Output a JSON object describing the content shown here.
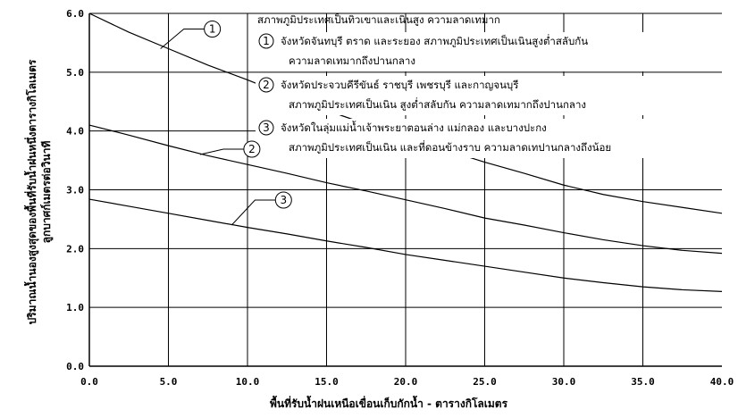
{
  "chart_data": {
    "type": "line",
    "xlabel": "พื้นที่รับน้ำฝนเหนือเขื่อนเก็บกักน้ำ - ตารางกิโลเมตร",
    "ylabel_lines": [
      "ปริมาณน้ำนองสูงสุดของพื้นที่รับน้ำฝนหนึ่งตารางกิโลเมตร",
      "ลูกบาศก์เมตรต่อวินาที"
    ],
    "xlim": [
      0,
      40
    ],
    "ylim": [
      0,
      6
    ],
    "x_ticks": [
      "0.0",
      "5.0",
      "10.0",
      "15.0",
      "20.0",
      "25.0",
      "30.0",
      "35.0",
      "40.0"
    ],
    "y_ticks": [
      "0.0",
      "1.0",
      "2.0",
      "3.0",
      "4.0",
      "5.0",
      "6.0"
    ],
    "grid": true,
    "legend_title": "สภาพภูมิประเทศเป็นทิวเขาและเนินสูง ความลาดเทมาก",
    "legend_items": [
      {
        "marker": "1",
        "lines": [
          "จังหวัดจันทบุรี ตราด และระยอง สภาพภูมิประเทศเป็นเนินสูงต่ำสลับกัน",
          "ความลาดเทมากถึงปานกลาง"
        ]
      },
      {
        "marker": "2",
        "lines": [
          "จังหวัดประจวบคีรีขันธ์ ราชบุรี เพชรบุรี และกาญจนบุรี",
          "สภาพภูมิประเทศเป็นเนิน สูงต่ำสลับกัน ความลาดเทมากถึงปานกลาง"
        ]
      },
      {
        "marker": "3",
        "lines": [
          "จังหวัดในลุ่มแม่น้ำเจ้าพระยาตอนล่าง แม่กลอง และบางปะกง",
          "สภาพภูมิประเทศเป็นเนิน และที่ดอนข้างราบ ความลาดเทปานกลางถึงน้อย"
        ]
      }
    ],
    "series": [
      {
        "name": "1",
        "x": [
          0,
          2.5,
          5,
          7.5,
          10,
          12.5,
          15,
          17.5,
          20,
          22.5,
          25,
          27.5,
          30,
          32.5,
          35,
          37.5,
          40
        ],
        "values": [
          6.0,
          5.68,
          5.4,
          5.12,
          4.87,
          4.6,
          4.35,
          4.12,
          3.9,
          3.68,
          3.47,
          3.28,
          3.08,
          2.92,
          2.8,
          2.7,
          2.6
        ]
      },
      {
        "name": "2",
        "x": [
          0,
          2.5,
          5,
          7.5,
          10,
          12.5,
          15,
          17.5,
          20,
          22.5,
          25,
          27.5,
          30,
          32.5,
          35,
          37.5,
          40
        ],
        "values": [
          4.1,
          3.93,
          3.75,
          3.58,
          3.43,
          3.28,
          3.12,
          2.98,
          2.83,
          2.68,
          2.52,
          2.4,
          2.27,
          2.15,
          2.05,
          1.97,
          1.92
        ]
      },
      {
        "name": "3",
        "x": [
          0,
          2.5,
          5,
          7.5,
          10,
          12.5,
          15,
          17.5,
          20,
          22.5,
          25,
          27.5,
          30,
          32.5,
          35,
          37.5,
          40
        ],
        "values": [
          2.84,
          2.72,
          2.6,
          2.48,
          2.36,
          2.25,
          2.13,
          2.02,
          1.9,
          1.8,
          1.7,
          1.6,
          1.5,
          1.42,
          1.35,
          1.3,
          1.27
        ]
      }
    ],
    "series_markers": [
      {
        "name": "1",
        "at_x": 4.5,
        "at_y": 5.4
      },
      {
        "name": "2",
        "at_x": 7.0,
        "at_y": 3.6
      },
      {
        "name": "3",
        "at_x": 9.0,
        "at_y": 2.4
      }
    ]
  }
}
